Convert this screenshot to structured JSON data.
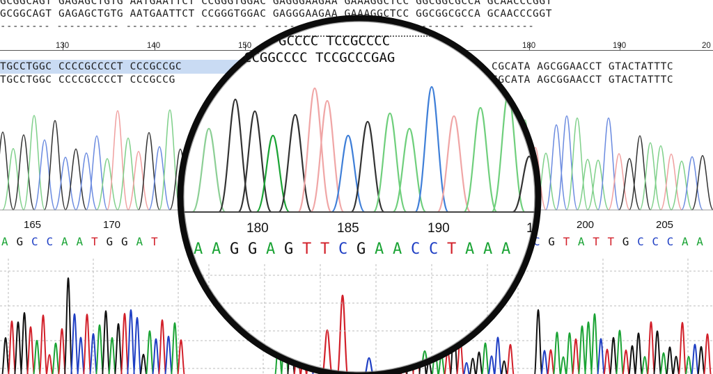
{
  "top_rows": [
    "GCGGCAGT GAGAGCTGTG AATGAATTCT CCGGGTGGAC GAGGGAAGAA GAAAGGCTCC GGCGGCGCCA GCAACCCGGT",
    "GCGGCAGT GAGAGCTGTG AATGAATTCT CCGGGTGGAC GAGGGAAGAA GAAAGGCTCC GGCGGCGCCA GCAACCCGGT"
  ],
  "dash_row": "-------- ---------- ---------- ---------- ---------- ---------- ---------- ----------",
  "ruler_numbers": [
    "130",
    "140",
    "150",
    "180",
    "190",
    "20"
  ],
  "aligned_rows": [
    "TGCCTGGC CCCCGCCCCT CCCGCCGC",
    "TGCCTGGC CCCCGCCCCT CCCGCCG"
  ],
  "aligned_rows_right": [
    "CGCATA AGCGGAACCT GTACTATTTC",
    "CGCATA AGCGGAACCT GTACTATTTC"
  ],
  "lens_rows": [
    "GCCCC TCCGCCCC",
    "CCGGCCCC TCCGCCCGAG"
  ],
  "position_labels": [
    "165",
    "170",
    "200",
    "205"
  ],
  "zoom_position_labels": [
    "180",
    "185",
    "190",
    "1"
  ],
  "base_calls_left": [
    {
      "b": "A",
      "c": "green"
    },
    {
      "b": "G",
      "c": "black"
    },
    {
      "b": "C",
      "c": "blue"
    },
    {
      "b": "C",
      "c": "blue"
    },
    {
      "b": "A",
      "c": "green"
    },
    {
      "b": "A",
      "c": "green"
    },
    {
      "b": "T",
      "c": "red"
    },
    {
      "b": "G",
      "c": "black"
    },
    {
      "b": "G",
      "c": "black"
    },
    {
      "b": "A",
      "c": "green"
    },
    {
      "b": "T",
      "c": "red"
    }
  ],
  "base_calls_zoom": [
    {
      "b": "A",
      "c": "green"
    },
    {
      "b": "A",
      "c": "green"
    },
    {
      "b": "G",
      "c": "black"
    },
    {
      "b": "G",
      "c": "black"
    },
    {
      "b": "A",
      "c": "green"
    },
    {
      "b": "G",
      "c": "black"
    },
    {
      "b": "T",
      "c": "red"
    },
    {
      "b": "T",
      "c": "red"
    },
    {
      "b": "C",
      "c": "blue"
    },
    {
      "b": "G",
      "c": "black"
    },
    {
      "b": "A",
      "c": "green"
    },
    {
      "b": "A",
      "c": "green"
    },
    {
      "b": "C",
      "c": "blue"
    },
    {
      "b": "C",
      "c": "blue"
    },
    {
      "b": "T",
      "c": "red"
    },
    {
      "b": "A",
      "c": "green"
    },
    {
      "b": "A",
      "c": "green"
    },
    {
      "b": "A",
      "c": "green"
    }
  ],
  "base_calls_right": [
    {
      "b": "C",
      "c": "blue"
    },
    {
      "b": "G",
      "c": "black"
    },
    {
      "b": "T",
      "c": "red"
    },
    {
      "b": "A",
      "c": "green"
    },
    {
      "b": "T",
      "c": "red"
    },
    {
      "b": "T",
      "c": "red"
    },
    {
      "b": "G",
      "c": "black"
    },
    {
      "b": "C",
      "c": "blue"
    },
    {
      "b": "C",
      "c": "blue"
    },
    {
      "b": "C",
      "c": "blue"
    },
    {
      "b": "A",
      "c": "green"
    },
    {
      "b": "A",
      "c": "green"
    }
  ],
  "colors": {
    "A": "#1aa334",
    "C": "#1f3fc4",
    "G": "#111111",
    "T": "#d2202a",
    "lens_rim": "#0c0c0c"
  }
}
